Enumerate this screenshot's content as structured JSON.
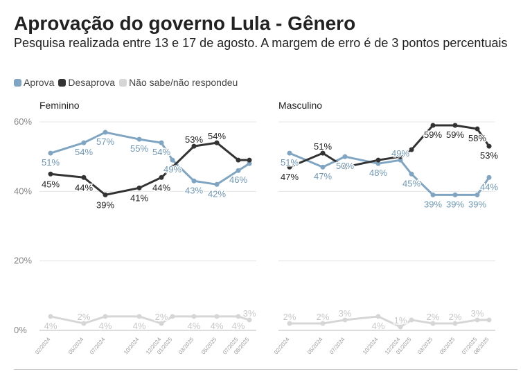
{
  "title": "Aprovação do governo Lula - Gênero",
  "subtitle": "Pesquisa realizada entre 13 e 17 de agosto. A margem de erro é de 3 pontos percentuais",
  "legend": [
    {
      "label": "Aprova",
      "color": "#7fa5c2"
    },
    {
      "label": "Desaprova",
      "color": "#333333"
    },
    {
      "label": "Não sabe/não respondeu",
      "color": "#d6d6d6"
    }
  ],
  "chart_data": [
    {
      "type": "line",
      "title": "Feminino",
      "x": [
        "02/2024",
        "05/2024",
        "07/2024",
        "10/2024",
        "12/2024",
        "01/2025",
        "03/2025",
        "05/2025",
        "07/2025",
        "08/2025"
      ],
      "yticks": [
        "60%",
        "40%",
        "20%",
        "0%"
      ],
      "ylim": [
        0,
        60
      ],
      "series": [
        {
          "name": "Aprova",
          "values": [
            51,
            54,
            57,
            55,
            54,
            49,
            43,
            42,
            46,
            48
          ],
          "labels": [
            "51%",
            "54%",
            "57%",
            "55%",
            "54%",
            "49%",
            "43%",
            "42%",
            "46%",
            ""
          ]
        },
        {
          "name": "Desaprova",
          "values": [
            45,
            44,
            39,
            41,
            44,
            47,
            53,
            54,
            49,
            49
          ],
          "labels": [
            "45%",
            "44%",
            "39%",
            "41%",
            "44%",
            "",
            "53%",
            "54%",
            "",
            ""
          ]
        },
        {
          "name": "Não sabe/não respondeu",
          "values": [
            4,
            2,
            4,
            4,
            2,
            4,
            4,
            4,
            4,
            3
          ],
          "labels": [
            "4%",
            "2%",
            "4%",
            "4%",
            "2%",
            "",
            "4%",
            "4%",
            "4%",
            "3%"
          ]
        }
      ]
    },
    {
      "type": "line",
      "title": "Masculino",
      "x": [
        "02/2024",
        "05/2024",
        "07/2024",
        "10/2024",
        "12/2024",
        "01/2025",
        "03/2025",
        "05/2025",
        "07/2025",
        "08/2025"
      ],
      "yticks": [],
      "ylim": [
        0,
        60
      ],
      "series": [
        {
          "name": "Aprova",
          "values": [
            51,
            47,
            50,
            48,
            49,
            45,
            39,
            39,
            39,
            44
          ],
          "labels": [
            "51%",
            "47%",
            "50%",
            "48%",
            "49%",
            "45%",
            "39%",
            "39%",
            "39%",
            "44%"
          ]
        },
        {
          "name": "Desaprova",
          "values": [
            47,
            51,
            47,
            49,
            50,
            52,
            59,
            59,
            58,
            53
          ],
          "labels": [
            "47%",
            "51%",
            "",
            "",
            "",
            "",
            "59%",
            "59%",
            "58%",
            "53%"
          ]
        },
        {
          "name": "Não sabe/não respondeu",
          "values": [
            2,
            2,
            3,
            4,
            1,
            3,
            2,
            2,
            3,
            3
          ],
          "labels": [
            "2%",
            "2%",
            "3%",
            "4%",
            "1%",
            "",
            "2%",
            "2%",
            "3%",
            ""
          ]
        }
      ]
    }
  ]
}
